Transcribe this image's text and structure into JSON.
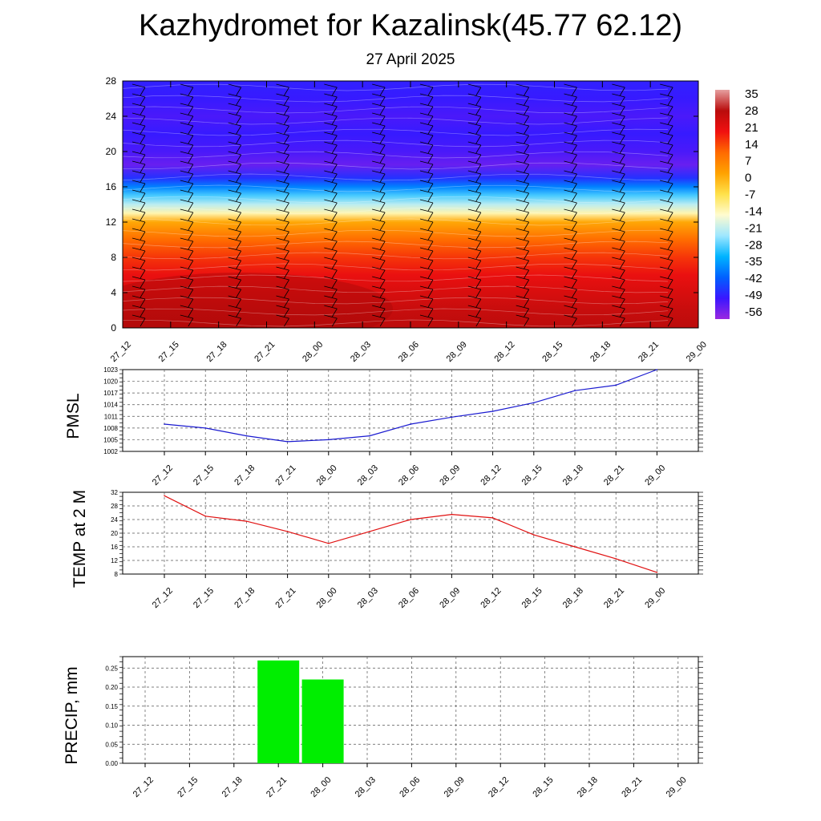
{
  "title": "Kazhydromet for Kazalinsk(45.77 62.12)",
  "subtitle": "27 April 2025",
  "time_labels": [
    "27_12",
    "27_15",
    "27_18",
    "27_21",
    "28_00",
    "28_03",
    "28_06",
    "28_09",
    "28_12",
    "28_15",
    "28_18",
    "28_21",
    "29_00"
  ],
  "chart_data": [
    {
      "type": "heatmap",
      "title": "",
      "xlabel": "",
      "ylabel": "",
      "categories": [
        "27_12",
        "27_15",
        "27_18",
        "27_21",
        "28_00",
        "28_03",
        "28_06",
        "28_09",
        "28_12",
        "28_15",
        "28_18",
        "28_21",
        "29_00"
      ],
      "y_ticks": [
        0,
        4,
        8,
        12,
        16,
        20,
        24,
        28
      ],
      "ylim": [
        0,
        28
      ],
      "colorbar_labels": [
        "35",
        "28",
        "21",
        "14",
        "7",
        "0",
        "-7",
        "-14",
        "-21",
        "-28",
        "-35",
        "-42",
        "-49",
        "-56"
      ],
      "colorbar_range": [
        -63,
        42
      ],
      "temperature_profile": [
        {
          "level": 0,
          "value": 32
        },
        {
          "level": 2,
          "value": 30
        },
        {
          "level": 4,
          "value": 27
        },
        {
          "level": 6,
          "value": 24
        },
        {
          "level": 8,
          "value": 19
        },
        {
          "level": 10,
          "value": 13
        },
        {
          "level": 12,
          "value": 3
        },
        {
          "level": 13,
          "value": -13
        },
        {
          "level": 14,
          "value": -22
        },
        {
          "level": 15,
          "value": -30
        },
        {
          "level": 16,
          "value": -40
        },
        {
          "level": 17,
          "value": -50
        },
        {
          "level": 18.5,
          "value": -58
        },
        {
          "level": 20,
          "value": -55
        },
        {
          "level": 22,
          "value": -53
        },
        {
          "level": 24,
          "value": -55
        },
        {
          "level": 26,
          "value": -53
        },
        {
          "level": 28,
          "value": -52
        }
      ],
      "colors": [
        "#9a28e0",
        "#3a16ff",
        "#0060ff",
        "#00b4ff",
        "#9ee7ff",
        "#fffbcf",
        "#ffe14a",
        "#ffa200",
        "#ff6a00",
        "#f01010",
        "#b90c0c",
        "#e6a0a0"
      ]
    },
    {
      "type": "line",
      "ylabel": "PMSL",
      "categories": [
        "27_12",
        "27_15",
        "27_18",
        "27_21",
        "28_00",
        "28_03",
        "28_06",
        "28_09",
        "28_12",
        "28_15",
        "28_18",
        "28_21",
        "29_00"
      ],
      "y_ticks": [
        1002,
        1005,
        1008,
        1011,
        1014,
        1017,
        1020,
        1023
      ],
      "ylim": [
        1002,
        1023
      ],
      "series": [
        {
          "values": [
            1009,
            1008,
            1006,
            1004.5,
            1005,
            1006,
            1009,
            1010.8,
            1012.3,
            1014.5,
            1017.6,
            1019,
            1023
          ]
        }
      ],
      "color": "#1a1ad0"
    },
    {
      "type": "line",
      "ylabel": "TEMP at 2 M",
      "categories": [
        "27_12",
        "27_15",
        "27_18",
        "27_21",
        "28_00",
        "28_03",
        "28_06",
        "28_09",
        "28_12",
        "28_15",
        "28_18",
        "28_21",
        "29_00"
      ],
      "y_ticks": [
        8,
        12,
        16,
        20,
        24,
        28,
        32
      ],
      "ylim": [
        8,
        32
      ],
      "series": [
        {
          "values": [
            31,
            25,
            23.5,
            20.5,
            17,
            20.5,
            24,
            25.5,
            24.5,
            19.5,
            16,
            12.5,
            8.5
          ]
        }
      ],
      "color": "#e01010"
    },
    {
      "type": "bar",
      "ylabel": "PRECIP, mm",
      "categories": [
        "27_12",
        "27_15",
        "27_18",
        "27_21",
        "28_00",
        "28_03",
        "28_06",
        "28_09",
        "28_12",
        "28_15",
        "28_18",
        "28_21",
        "29_00"
      ],
      "y_ticks": [
        "0.00",
        "0.05",
        "0.10",
        "0.15",
        "0.20",
        "0.25"
      ],
      "ylim": [
        0,
        0.28
      ],
      "values": [
        0,
        0,
        0,
        0.27,
        0.22,
        0,
        0,
        0,
        0,
        0,
        0,
        0,
        0
      ],
      "color": "#00ee00"
    }
  ]
}
